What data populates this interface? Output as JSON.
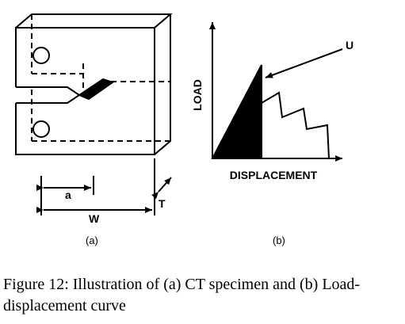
{
  "figure_a": {
    "dim_a": "a",
    "dim_w": "W",
    "dim_t": "T",
    "label": "(a)"
  },
  "figure_b": {
    "curve_label": "U",
    "y_axis": "LOAD",
    "x_axis": "DISPLACEMENT",
    "label": "(b)"
  },
  "caption": {
    "lines": [
      "Figure 12:  Illustration of (a) CT specimen and (b) Load-",
      "displacement curve"
    ]
  }
}
